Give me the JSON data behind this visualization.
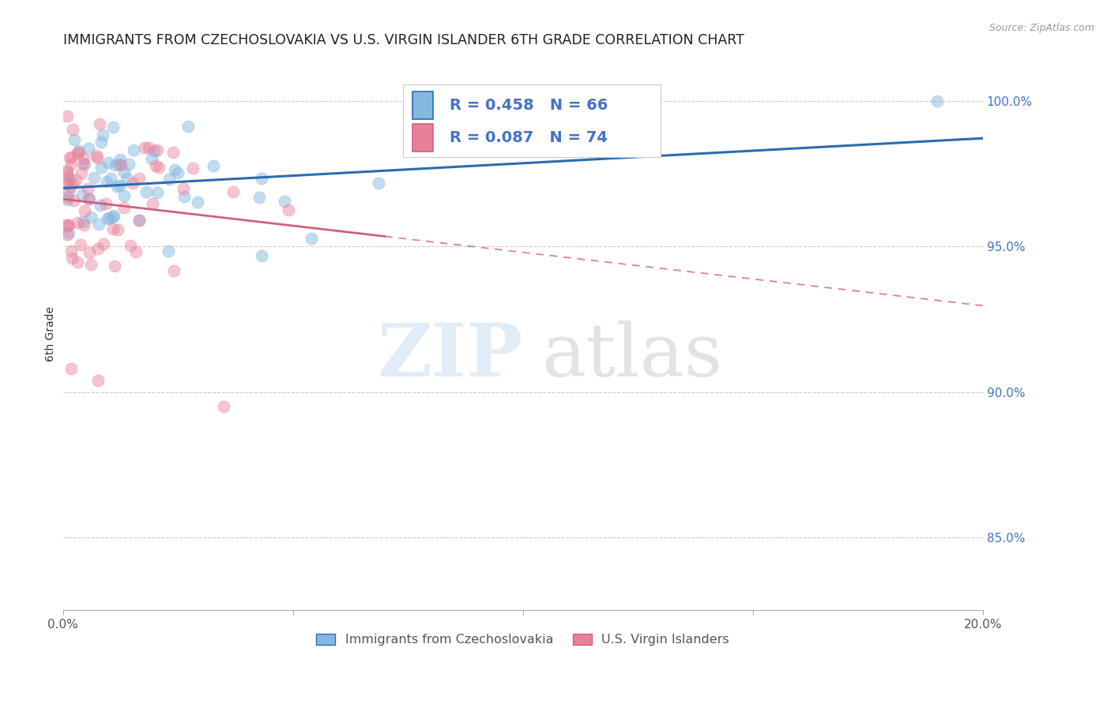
{
  "title": "IMMIGRANTS FROM CZECHOSLOVAKIA VS U.S. VIRGIN ISLANDER 6TH GRADE CORRELATION CHART",
  "source": "Source: ZipAtlas.com",
  "ylabel": "6th Grade",
  "ytick_values": [
    0.85,
    0.9,
    0.95,
    1.0
  ],
  "ytick_labels": [
    "85.0%",
    "90.0%",
    "95.0%",
    "100.0%"
  ],
  "xlim": [
    0.0,
    0.2
  ],
  "ylim": [
    0.825,
    1.015
  ],
  "legend1_label": "Immigrants from Czechoslovakia",
  "legend2_label": "U.S. Virgin Islanders",
  "R_blue": 0.458,
  "N_blue": 66,
  "R_pink": 0.087,
  "N_pink": 74,
  "blue_color": "#85b8e0",
  "pink_color": "#e8809a",
  "blue_line_color": "#2b6cb0",
  "pink_line_color": "#d06080",
  "background_color": "#ffffff",
  "grid_color": "#cccccc",
  "title_color": "#222222",
  "source_color": "#999999",
  "right_tick_color": "#4472c4"
}
